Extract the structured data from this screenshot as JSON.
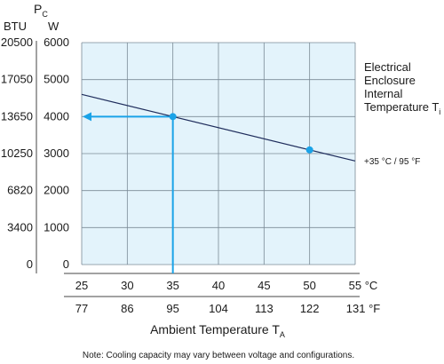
{
  "chart_data": {
    "type": "line",
    "y_quantity_symbol": "P",
    "y_quantity_subscript": "C",
    "y_left_unit": "BTU",
    "y_right_unit": "W",
    "y_ticks_w": [
      0,
      1000,
      2000,
      3000,
      4000,
      5000,
      6000
    ],
    "y_ticks_btu": [
      "0",
      "3400",
      "6820",
      "10250",
      "13650",
      "17050",
      "20500"
    ],
    "ylim": [
      0,
      6000
    ],
    "x_ticks_c": [
      25,
      30,
      35,
      40,
      45,
      50,
      55
    ],
    "x_ticks_f": [
      77,
      86,
      95,
      104,
      113,
      122,
      131
    ],
    "xlim": [
      25,
      55
    ],
    "x_unit_c": "°C",
    "x_unit_f": "°F",
    "xlabel_text": "Ambient Temperature T",
    "xlabel_subscript": "A",
    "grid": true,
    "series": [
      {
        "name": "+35 °C / 95 °F",
        "color": "#1f2d5c",
        "x": [
          25,
          55
        ],
        "y": [
          4600,
          2800
        ],
        "highlight_points": [
          {
            "x": 35,
            "y": 4000
          },
          {
            "x": 50,
            "y": 3100
          }
        ]
      }
    ],
    "annotation": {
      "title_lines": [
        "Electrical",
        "Enclosure",
        "Internal",
        "Temperature T"
      ],
      "title_subscript": "i",
      "guide_point": {
        "x": 35,
        "y": 4000
      },
      "guide_color": "#1aa3e8",
      "marker_color": "#1aa3e8",
      "plot_bg": "#e3f3fb",
      "grid_color": "#7a8a96"
    },
    "note": "Note: Cooling capacity may vary between voltage and configurations."
  }
}
